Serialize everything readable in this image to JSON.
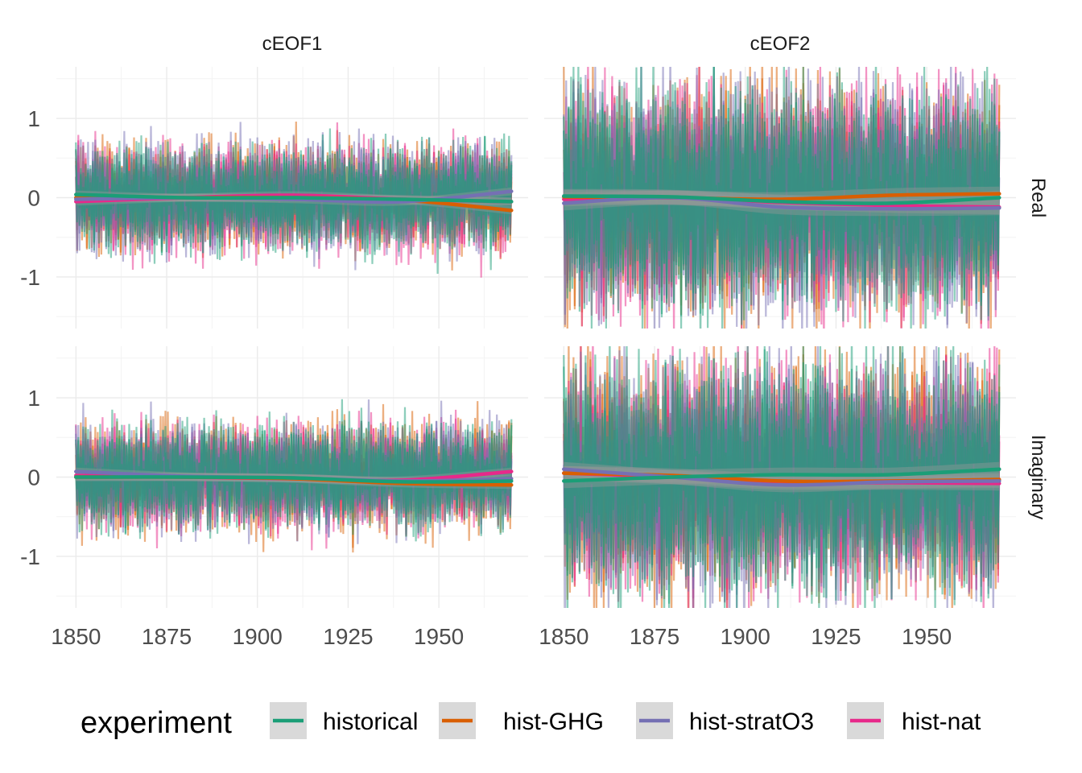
{
  "chart_data": {
    "type": "line",
    "facet_columns": [
      "cEOF1",
      "cEOF2"
    ],
    "facet_rows": [
      "Real",
      "Imaginary"
    ],
    "x_range": [
      1850,
      1970
    ],
    "y_range": [
      -1.65,
      1.65
    ],
    "x_ticks": [
      1850,
      1875,
      1900,
      1925,
      1950
    ],
    "x_tick_labels": [
      "1850",
      "1875",
      "1900",
      "1925",
      "1950"
    ],
    "y_ticks": [
      1,
      0,
      -1
    ],
    "y_tick_labels": [
      "1",
      "0",
      "-1"
    ],
    "grid": true,
    "legend": {
      "title": "experiment",
      "position": "bottom",
      "entries": [
        {
          "label": "historical",
          "color": "#1B9E77"
        },
        {
          "label": "hist-GHG",
          "color": "#D95F02"
        },
        {
          "label": "hist-stratO3",
          "color": "#7570B3"
        },
        {
          "label": "hist-nat",
          "color": "#E7298A"
        }
      ]
    },
    "raw_series_amplitude": {
      "cEOF1": {
        "Real": 0.6,
        "Imaginary": 0.6
      },
      "cEOF2": {
        "Real": 1.3,
        "Imaginary": 1.3
      }
    },
    "trend_years": [
      1850,
      1880,
      1910,
      1940,
      1970
    ],
    "trends": [
      {
        "panel": "cEOF1",
        "component": "Real",
        "series": [
          {
            "experiment": "historical",
            "values": [
              0.04,
              0.0,
              0.0,
              -0.02,
              -0.05
            ]
          },
          {
            "experiment": "hist-GHG",
            "values": [
              0.0,
              0.0,
              0.0,
              -0.03,
              -0.16
            ]
          },
          {
            "experiment": "hist-stratO3",
            "values": [
              -0.02,
              0.0,
              -0.02,
              -0.05,
              0.08
            ]
          },
          {
            "experiment": "hist-nat",
            "values": [
              -0.05,
              0.0,
              0.03,
              -0.02,
              -0.05
            ]
          }
        ]
      },
      {
        "panel": "cEOF2",
        "component": "Real",
        "series": [
          {
            "experiment": "historical",
            "values": [
              0.02,
              0.01,
              -0.05,
              -0.07,
              0.0
            ]
          },
          {
            "experiment": "hist-GHG",
            "values": [
              0.01,
              0.0,
              -0.02,
              0.03,
              0.05
            ]
          },
          {
            "experiment": "hist-stratO3",
            "values": [
              -0.07,
              0.0,
              -0.12,
              -0.14,
              -0.13
            ]
          },
          {
            "experiment": "hist-nat",
            "values": [
              -0.02,
              0.0,
              -0.06,
              -0.1,
              -0.12
            ]
          }
        ]
      },
      {
        "panel": "cEOF1",
        "component": "Imaginary",
        "series": [
          {
            "experiment": "historical",
            "values": [
              0.0,
              0.0,
              -0.01,
              -0.06,
              -0.05
            ]
          },
          {
            "experiment": "hist-GHG",
            "values": [
              0.0,
              0.0,
              -0.02,
              -0.08,
              -0.1
            ]
          },
          {
            "experiment": "hist-stratO3",
            "values": [
              0.07,
              0.01,
              -0.01,
              -0.05,
              -0.02
            ]
          },
          {
            "experiment": "hist-nat",
            "values": [
              0.02,
              0.0,
              -0.02,
              -0.04,
              0.07
            ]
          }
        ]
      },
      {
        "panel": "cEOF2",
        "component": "Imaginary",
        "series": [
          {
            "experiment": "historical",
            "values": [
              -0.05,
              0.0,
              0.03,
              0.03,
              0.1
            ]
          },
          {
            "experiment": "hist-GHG",
            "values": [
              0.05,
              0.02,
              -0.05,
              -0.05,
              -0.03
            ]
          },
          {
            "experiment": "hist-stratO3",
            "values": [
              0.1,
              0.0,
              -0.1,
              -0.06,
              -0.05
            ]
          },
          {
            "experiment": "hist-nat",
            "values": [
              0.05,
              0.0,
              -0.07,
              -0.07,
              -0.08
            ]
          }
        ]
      }
    ]
  }
}
